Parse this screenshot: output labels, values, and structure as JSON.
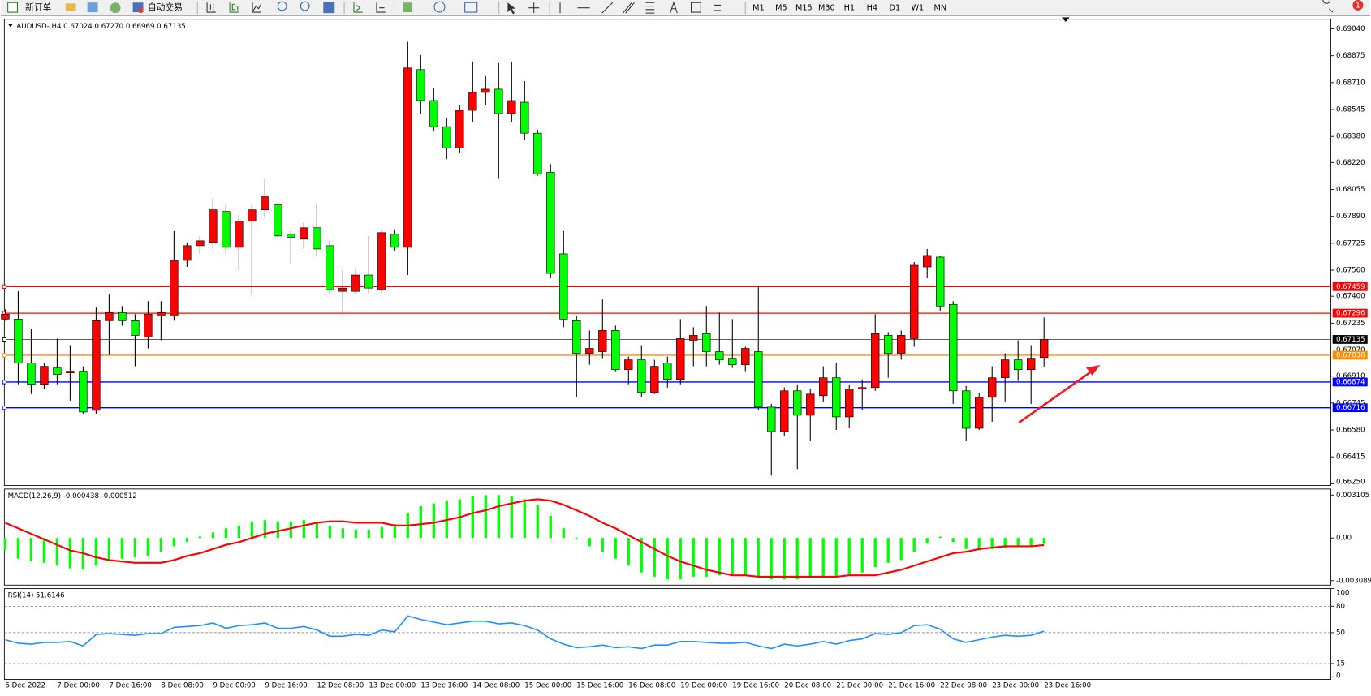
{
  "toolbar": {
    "new_order": "新订单",
    "auto_trading": "自动交易",
    "timeframes": [
      "M1",
      "M5",
      "M15",
      "M30",
      "H1",
      "H4",
      "D1",
      "W1",
      "MN"
    ],
    "notification_count": "1"
  },
  "chart_data": [
    {
      "type": "candlestick",
      "title": "AUDUSD-,H4  0.67024 0.67270 0.66969 0.67135",
      "categories": [
        "6 Dec 2022",
        null,
        null,
        null,
        "7 Dec 00:00",
        null,
        null,
        null,
        "7 Dec 16:00",
        null,
        null,
        null,
        "8 Dec 08:00",
        null,
        null,
        null,
        "9 Dec 00:00",
        null,
        null,
        null,
        "9 Dec 16:00",
        null,
        null,
        null,
        "12 Dec 08:00",
        null,
        null,
        null,
        "13 Dec 00:00",
        null,
        null,
        null,
        "13 Dec 16:00",
        null,
        null,
        null,
        "14 Dec 08:00",
        null,
        null,
        null,
        "15 Dec 00:00",
        null,
        null,
        null,
        "15 Dec 16:00",
        null,
        null,
        null,
        "16 Dec 08:00",
        null,
        null,
        null,
        "19 Dec 00:00",
        null,
        null,
        null,
        "19 Dec 16:00",
        null,
        null,
        null,
        "20 Dec 08:00",
        null,
        null,
        null,
        "21 Dec 00:00",
        null,
        null,
        null,
        "21 Dec 16:00",
        null,
        null,
        null,
        "22 Dec 08:00",
        null,
        null,
        null,
        "23 Dec 00:00",
        null,
        null,
        null,
        "23 Dec 16:00"
      ],
      "open": [
        0.6726,
        0.6726,
        0.6699,
        0.6686,
        0.6696,
        0.6693,
        0.6694,
        0.667,
        0.6725,
        0.673,
        0.6725,
        0.6715,
        0.6728,
        0.6728,
        0.6762,
        0.6771,
        0.6773,
        0.6792,
        0.677,
        0.6786,
        0.6793,
        0.6796,
        0.6778,
        0.6775,
        0.6782,
        0.6771,
        0.6743,
        0.6743,
        0.6753,
        0.6744,
        0.6778,
        0.677,
        0.6879,
        0.686,
        0.6844,
        0.6831,
        0.6854,
        0.6865,
        0.6867,
        0.6852,
        0.6859,
        0.684,
        0.6816,
        0.6766,
        0.6725,
        0.6705,
        0.6706,
        0.6719,
        0.6695,
        0.6701,
        0.6681,
        0.6699,
        0.6689,
        0.6713,
        0.6717,
        0.6706,
        0.6702,
        0.6698,
        0.6706,
        0.6672,
        0.6657,
        0.6682,
        0.6667,
        0.6679,
        0.669,
        0.6666,
        0.6683,
        0.6684,
        0.6716,
        0.6705,
        0.6714,
        0.6758,
        0.6764,
        0.6735,
        0.6682,
        0.6659,
        0.6678,
        0.669,
        0.6701,
        0.6695,
        0.67024
      ],
      "high": [
        0.6732,
        0.6743,
        0.672,
        0.6699,
        0.6714,
        0.671,
        0.6697,
        0.6733,
        0.6741,
        0.6734,
        0.6729,
        0.6737,
        0.6737,
        0.678,
        0.6773,
        0.6777,
        0.68,
        0.6796,
        0.679,
        0.6796,
        0.6812,
        0.6797,
        0.678,
        0.6785,
        0.6797,
        0.6774,
        0.6756,
        0.6757,
        0.6777,
        0.6781,
        0.6781,
        0.6896,
        0.6888,
        0.6868,
        0.6849,
        0.6857,
        0.6884,
        0.6875,
        0.6883,
        0.6884,
        0.6872,
        0.6842,
        0.6821,
        0.678,
        0.6728,
        0.6719,
        0.6738,
        0.6722,
        0.6703,
        0.671,
        0.6701,
        0.6703,
        0.6726,
        0.6721,
        0.6734,
        0.673,
        0.6726,
        0.6709,
        0.6746,
        0.6674,
        0.6684,
        0.6686,
        0.6683,
        0.6697,
        0.6699,
        0.6686,
        0.6689,
        0.6729,
        0.6718,
        0.6719,
        0.6761,
        0.6769,
        0.6765,
        0.6737,
        0.6685,
        0.6681,
        0.6697,
        0.6705,
        0.6713,
        0.671,
        0.6727
      ],
      "low": [
        0.6725,
        0.6686,
        0.668,
        0.6683,
        0.6686,
        0.6676,
        0.6668,
        0.6668,
        0.6704,
        0.6722,
        0.6697,
        0.6708,
        0.6713,
        0.6725,
        0.6758,
        0.6766,
        0.6769,
        0.6766,
        0.6756,
        0.6741,
        0.6788,
        0.6776,
        0.676,
        0.6769,
        0.6765,
        0.6741,
        0.673,
        0.6741,
        0.6742,
        0.6742,
        0.6768,
        0.6753,
        0.6852,
        0.6841,
        0.6824,
        0.6828,
        0.6847,
        0.6857,
        0.6812,
        0.6847,
        0.6836,
        0.6814,
        0.6751,
        0.6721,
        0.6678,
        0.6698,
        0.6702,
        0.6694,
        0.6686,
        0.6678,
        0.668,
        0.6684,
        0.6686,
        0.6697,
        0.6697,
        0.6698,
        0.6696,
        0.6694,
        0.667,
        0.663,
        0.6654,
        0.6634,
        0.6651,
        0.6675,
        0.6658,
        0.6659,
        0.667,
        0.6682,
        0.669,
        0.6701,
        0.6709,
        0.6751,
        0.6731,
        0.6674,
        0.6651,
        0.6658,
        0.6663,
        0.6675,
        0.6688,
        0.6674,
        0.66969
      ],
      "close": [
        0.6729,
        0.6699,
        0.6686,
        0.6697,
        0.6692,
        0.6694,
        0.6669,
        0.6725,
        0.673,
        0.6725,
        0.6716,
        0.6729,
        0.673,
        0.6762,
        0.6771,
        0.6774,
        0.6793,
        0.677,
        0.6786,
        0.6793,
        0.6801,
        0.6777,
        0.6776,
        0.6782,
        0.6769,
        0.6744,
        0.6745,
        0.6753,
        0.6745,
        0.6779,
        0.677,
        0.688,
        0.686,
        0.6844,
        0.6831,
        0.6854,
        0.6865,
        0.6867,
        0.6852,
        0.686,
        0.684,
        0.6815,
        0.6754,
        0.6726,
        0.6705,
        0.6708,
        0.6719,
        0.6695,
        0.6701,
        0.6681,
        0.6697,
        0.6689,
        0.6714,
        0.6716,
        0.6706,
        0.6701,
        0.6698,
        0.6708,
        0.6672,
        0.6657,
        0.6682,
        0.6667,
        0.668,
        0.669,
        0.6666,
        0.6683,
        0.6684,
        0.6717,
        0.6705,
        0.6716,
        0.6759,
        0.6765,
        0.6734,
        0.6682,
        0.6659,
        0.6678,
        0.669,
        0.6701,
        0.6695,
        0.6702,
        0.67135
      ],
      "up_color": "#ff0000",
      "down_color": "#00ff00",
      "ylim": [
        0.66239,
        0.69099
      ],
      "yticks": [
        {
          "value": 0.6904,
          "label": "0.69040"
        },
        0.68875,
        {
          "value": 0.6871,
          "label": "0.68710"
        },
        0.68545,
        {
          "value": 0.6838,
          "label": "0.68380"
        },
        {
          "value": 0.6822,
          "label": "0.68220"
        },
        0.68055,
        {
          "value": 0.6789,
          "label": "0.67890"
        },
        0.67725,
        {
          "value": 0.6756,
          "label": "0.67560"
        },
        {
          "value": 0.674,
          "label": "0.67400"
        },
        0.67235,
        {
          "value": 0.6707,
          "label": "0.67070"
        },
        {
          "value": 0.6691,
          "label": "0.66910"
        },
        0.66745,
        {
          "value": 0.6658,
          "label": "0.66580"
        },
        0.66415,
        {
          "value": 0.6625,
          "label": "0.66250"
        }
      ],
      "hlines": [
        {
          "value": 0.67459,
          "color": "#ff0000"
        },
        {
          "value": 0.67296,
          "color": "#ff0000"
        },
        {
          "value": 0.67135,
          "color": "#000000"
        },
        {
          "value": 0.67038,
          "color": "#ff8c00"
        },
        {
          "value": 0.66874,
          "color": "#0000ff"
        },
        {
          "value": 0.66716,
          "color": "#0000ff"
        }
      ]
    },
    {
      "type": "macd",
      "title": "MACD(12,26,9) -0.000438 -0.000512",
      "histogram": {
        "color": "#00ff00",
        "values": [
          -0.0009,
          -0.0015,
          -0.0017,
          -0.0018,
          -0.002,
          -0.0022,
          -0.0023,
          -0.002,
          -0.0017,
          -0.0015,
          -0.0014,
          -0.0013,
          -0.001,
          -0.0006,
          -0.0003,
          0.0001,
          0.0004,
          0.0007,
          0.0009,
          0.0012,
          0.0013,
          0.0012,
          0.0012,
          0.0013,
          0.0011,
          0.0009,
          0.0007,
          0.0006,
          0.0006,
          0.0008,
          0.001,
          0.0018,
          0.0023,
          0.0025,
          0.0027,
          0.0028,
          0.003,
          0.0031,
          0.0031,
          0.003,
          0.0028,
          0.0024,
          0.0016,
          0.0007,
          -0.0001,
          -0.0006,
          -0.001,
          -0.0015,
          -0.002,
          -0.0025,
          -0.0028,
          -0.003,
          -0.003,
          -0.0028,
          -0.0028,
          -0.0027,
          -0.0027,
          -0.0027,
          -0.0028,
          -0.003,
          -0.003,
          -0.003,
          -0.0029,
          -0.0028,
          -0.0028,
          -0.0027,
          -0.0025,
          -0.0021,
          -0.0018,
          -0.0016,
          -0.001,
          -0.0004,
          0.0001,
          -0.0003,
          -0.0008,
          -0.0009,
          -0.0008,
          -0.0007,
          -0.0006,
          -0.0006,
          -0.000438
        ]
      },
      "signal": {
        "color": "#ff0000",
        "values": [
          0.0011,
          0.0007,
          0.0003,
          -0.0001,
          -0.0005,
          -0.0009,
          -0.0011,
          -0.0014,
          -0.0016,
          -0.0017,
          -0.0018,
          -0.0018,
          -0.0018,
          -0.0016,
          -0.0013,
          -0.0011,
          -0.0008,
          -0.0005,
          -0.0003,
          0,
          0.0003,
          0.0005,
          0.0007,
          0.0009,
          0.0011,
          0.0012,
          0.0012,
          0.0011,
          0.0011,
          0.0011,
          0.0009,
          0.0009,
          0.001,
          0.0011,
          0.0013,
          0.0015,
          0.0018,
          0.002,
          0.0023,
          0.0025,
          0.0027,
          0.0028,
          0.0027,
          0.0024,
          0.002,
          0.0016,
          0.0011,
          0.0007,
          0.0002,
          -0.0003,
          -0.0008,
          -0.0013,
          -0.0017,
          -0.002,
          -0.0023,
          -0.0025,
          -0.0027,
          -0.0027,
          -0.0028,
          -0.0028,
          -0.0028,
          -0.0028,
          -0.0028,
          -0.0028,
          -0.0028,
          -0.0027,
          -0.0027,
          -0.0027,
          -0.0025,
          -0.0023,
          -0.002,
          -0.0017,
          -0.0014,
          -0.0011,
          -0.001,
          -0.0008,
          -0.0007,
          -0.0006,
          -0.0006,
          -0.0006,
          -0.000512
        ]
      },
      "ylim": [
        -0.00341,
        0.00354
      ],
      "yticks": [
        0.003105,
        {
          "value": 0,
          "label": "0.00"
        },
        -0.003089
      ]
    },
    {
      "type": "line",
      "title": "RSI(14) 51.6146",
      "color": "#1e90ff",
      "values": [
        42,
        38,
        37,
        39,
        39,
        40,
        35,
        48,
        49,
        48,
        47,
        49,
        49,
        56,
        57,
        58,
        61,
        55,
        58,
        59,
        61,
        55,
        55,
        57,
        53,
        46,
        46,
        48,
        47,
        53,
        51,
        69,
        65,
        62,
        59,
        61,
        63,
        63,
        60,
        61,
        58,
        53,
        43,
        37,
        33,
        34,
        36,
        33,
        34,
        32,
        36,
        36,
        40,
        40,
        39,
        38,
        38,
        39,
        35,
        32,
        37,
        35,
        37,
        40,
        37,
        41,
        43,
        49,
        48,
        50,
        58,
        59,
        54,
        43,
        39,
        42,
        45,
        47,
        46,
        47,
        51.6146
      ],
      "ylim": [
        -3,
        100
      ],
      "yticks": [
        100,
        80,
        50,
        15,
        0
      ],
      "level_lines": [
        80,
        50,
        15
      ]
    }
  ]
}
